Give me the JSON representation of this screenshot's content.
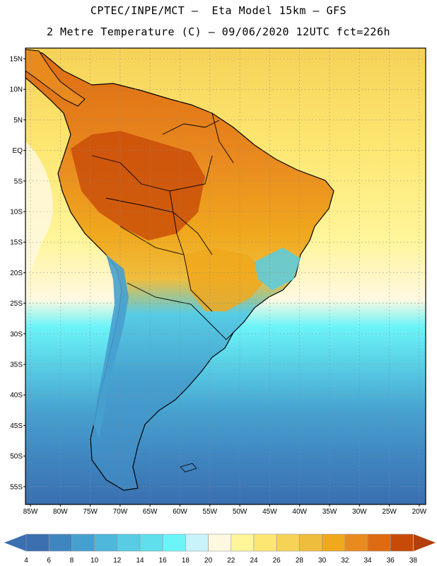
{
  "header": {
    "title_line1": "CPTEC/INPE/MCT –  Eta Model 15km – GFS",
    "title_line2": "2 Metre Temperature (C) – 09/06/2020 12UTC fct=226h"
  },
  "map": {
    "lat_labels": [
      "15N",
      "10N",
      "5N",
      "EQ",
      "5S",
      "10S",
      "15S",
      "20S",
      "25S",
      "30S",
      "35S",
      "40S",
      "45S",
      "50S",
      "55S"
    ],
    "lon_labels": [
      "85W",
      "80W",
      "75W",
      "70W",
      "65W",
      "60W",
      "55W",
      "50W",
      "45W",
      "40W",
      "35W",
      "30W",
      "25W",
      "20W"
    ]
  },
  "legend": {
    "values": [
      "4",
      "6",
      "8",
      "10",
      "12",
      "14",
      "16",
      "18",
      "20",
      "22",
      "24",
      "26",
      "28",
      "30",
      "32",
      "34",
      "36",
      "38"
    ],
    "colors": [
      "#3a6fb0",
      "#3f85c0",
      "#46a0cf",
      "#4fb6dc",
      "#57cce4",
      "#5fdfec",
      "#6cf4f8",
      "#c9f3fb",
      "#fff8e1",
      "#fff59a",
      "#fde772",
      "#f6d257",
      "#efbd3d",
      "#f0a81d",
      "#e98a1f",
      "#de6b12",
      "#c84a08"
    ],
    "under_color": "#3a6fb0",
    "over_color": "#b3400a"
  }
}
